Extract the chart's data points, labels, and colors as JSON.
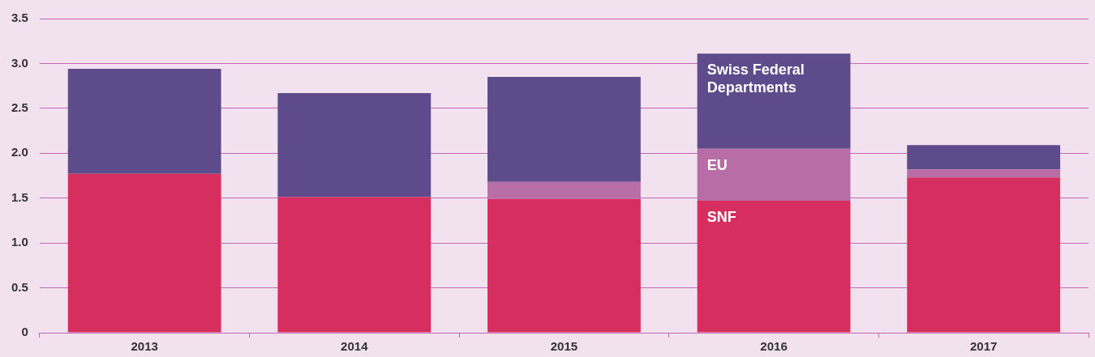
{
  "chart_data": {
    "type": "bar",
    "stacked": true,
    "categories": [
      "2013",
      "2014",
      "2015",
      "2016",
      "2017"
    ],
    "series": [
      {
        "name": "SNF",
        "color": "#d62f5f",
        "values": [
          1.77,
          1.51,
          1.49,
          1.47,
          1.73
        ]
      },
      {
        "name": "EU",
        "color": "#b96da6",
        "values": [
          0,
          0,
          0.19,
          0.58,
          0.09
        ]
      },
      {
        "name": "Swiss Federal Departments",
        "color": "#5e4b8b",
        "values": [
          1.17,
          1.16,
          1.17,
          1.06,
          0.27
        ]
      }
    ],
    "ylim": [
      0,
      3.5
    ],
    "yticks": [
      0,
      {
        "value": 0.5,
        "label": "0.5"
      },
      {
        "value": 1,
        "label": "1.0"
      },
      {
        "value": 1.5,
        "label": "1.5"
      },
      {
        "value": 2,
        "label": "2.0"
      },
      {
        "value": 2.5,
        "label": "2.5"
      },
      {
        "value": 3,
        "label": "3.0"
      },
      {
        "value": 3.5,
        "label": "3.5"
      }
    ],
    "grid": "y",
    "legend": false
  }
}
